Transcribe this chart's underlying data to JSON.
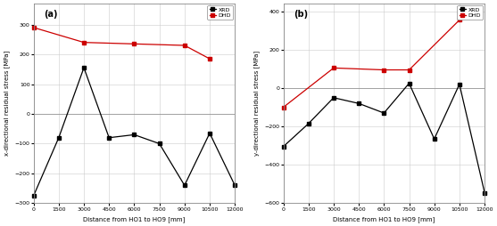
{
  "a_xrd_x": [
    0,
    1500,
    3000,
    4500,
    6000,
    7500,
    9000,
    10500,
    12000
  ],
  "a_xrd_y": [
    -275,
    -80,
    155,
    -80,
    -70,
    -100,
    -240,
    -65,
    -240
  ],
  "a_dhd_x": [
    0,
    3000,
    6000,
    9000,
    10500
  ],
  "a_dhd_y": [
    290,
    240,
    235,
    230,
    185
  ],
  "a_ylim": [
    -300,
    370
  ],
  "a_yticks": [
    -300,
    -200,
    -100,
    0,
    100,
    200,
    300
  ],
  "a_ylabel": "x-directional residual stress [MPa]",
  "a_label": "(a)",
  "b_xrd_x": [
    0,
    1500,
    3000,
    4500,
    6000,
    7500,
    9000,
    10500,
    12000
  ],
  "b_xrd_y": [
    -305,
    -185,
    -50,
    -80,
    -130,
    25,
    -265,
    20,
    -545
  ],
  "b_dhd_x": [
    0,
    3000,
    6000,
    7500,
    10500
  ],
  "b_dhd_y": [
    -100,
    105,
    95,
    95,
    355
  ],
  "b_ylim": [
    -600,
    440
  ],
  "b_yticks": [
    -600,
    -400,
    -200,
    0,
    200,
    400
  ],
  "b_ylabel": "y-directional residual stress [MPa]",
  "b_label": "(b)",
  "xlabel": "Distance from HO1 to HO9 [mm]",
  "xticks": [
    0,
    1500,
    3000,
    4500,
    6000,
    7500,
    9000,
    10500,
    12000
  ],
  "xlim": [
    0,
    12000
  ],
  "xrd_color": "#000000",
  "dhd_color": "#cc0000",
  "marker": "s",
  "markersize": 2.5,
  "linewidth": 0.9,
  "legend_xrd": "XRD",
  "legend_dhd": "DHD",
  "bg_color": "#ffffff",
  "grid_color": "#cccccc"
}
